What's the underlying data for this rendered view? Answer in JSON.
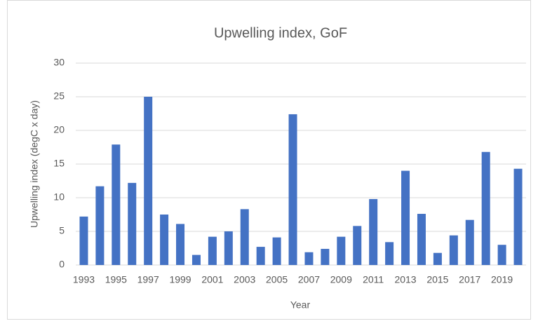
{
  "chart_data": {
    "type": "bar",
    "title": "Upwelling index, GoF",
    "x_label": "Year",
    "y_label": "Upwelling index (degC x day)",
    "categories": [
      1993,
      null,
      1995,
      null,
      1997,
      null,
      1999,
      null,
      2001,
      null,
      2003,
      null,
      2005,
      null,
      2007,
      null,
      2009,
      null,
      2011,
      null,
      2013,
      null,
      2015,
      null,
      2017,
      null,
      2019,
      null
    ],
    "values": [
      7.2,
      11.7,
      17.9,
      12.2,
      25.0,
      7.5,
      6.1,
      1.5,
      4.2,
      5.0,
      8.3,
      2.7,
      4.1,
      22.4,
      1.9,
      2.4,
      4.2,
      5.8,
      9.8,
      3.4,
      14.0,
      7.6,
      1.8,
      4.4,
      6.7,
      16.8,
      3.0,
      14.3
    ],
    "color": "#4472c4",
    "ylim": [
      0,
      30
    ],
    "yticks": [
      0,
      5,
      10,
      15,
      20,
      25,
      30
    ],
    "grid": true
  }
}
